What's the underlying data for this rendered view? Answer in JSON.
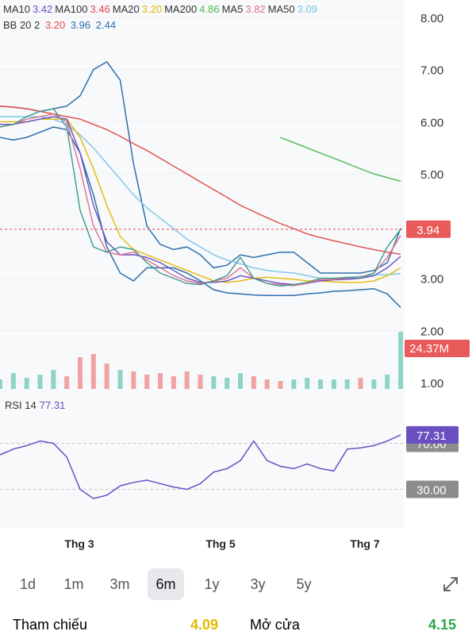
{
  "indicators": {
    "ma_row": [
      {
        "label": "MA10",
        "value": "3.42",
        "color": "#6a4fc2"
      },
      {
        "label": "MA100",
        "value": "3.46",
        "color": "#e24a4a"
      },
      {
        "label": "MA20",
        "value": "3.20",
        "color": "#e6b800"
      },
      {
        "label": "MA200",
        "value": "4.86",
        "color": "#4cb94c"
      },
      {
        "label": "MA5",
        "value": "3.82",
        "color": "#e07090"
      },
      {
        "label": "MA50",
        "value": "3.09",
        "color": "#7cc3ea"
      }
    ],
    "bb_row": {
      "label": "BB 20 2",
      "mid": "3.20",
      "upper": "3.96",
      "lower": "2.44"
    },
    "rsi": {
      "label": "RSI 14",
      "value": "77.31"
    }
  },
  "chart_data": {
    "type": "line",
    "price_axis": {
      "ticks": [
        "8.00",
        "7.00",
        "6.00",
        "5.00",
        "4.00",
        "3.00",
        "2.00",
        "1.00"
      ],
      "range": [
        1,
        8.5
      ]
    },
    "current_price_label": "3.94",
    "current_price": 3.94,
    "volume_label": "24.37M",
    "rsi_axis": {
      "ticks": [
        "70.00",
        "30.00"
      ]
    },
    "x_labels": [
      "Thg 3",
      "Thg 5",
      "Thg 7"
    ],
    "series": [
      {
        "name": "BB upper",
        "color": "#2f6fa8",
        "values": [
          6.3,
          6.28,
          6.25,
          6.2,
          6.25,
          6.3,
          6.5,
          7.0,
          7.15,
          6.8,
          5.2,
          4.0,
          3.65,
          3.55,
          3.6,
          3.45,
          3.2,
          3.25,
          3.45,
          3.4,
          3.45,
          3.5,
          3.5,
          3.3,
          3.1,
          3.1,
          3.1,
          3.1,
          3.15,
          3.3,
          3.96
        ]
      },
      {
        "name": "BB lower",
        "color": "#2f6fa8",
        "values": [
          5.7,
          5.65,
          5.7,
          5.8,
          5.9,
          5.85,
          5.4,
          4.6,
          3.6,
          3.1,
          2.95,
          3.2,
          3.2,
          3.2,
          3.1,
          2.95,
          2.78,
          2.72,
          2.7,
          2.68,
          2.67,
          2.67,
          2.67,
          2.7,
          2.72,
          2.75,
          2.76,
          2.78,
          2.8,
          2.7,
          2.44
        ]
      },
      {
        "name": "MA50",
        "color": "#7cc3ea",
        "values": [
          6.1,
          6.1,
          6.1,
          6.1,
          6.05,
          5.95,
          5.75,
          5.5,
          5.2,
          4.9,
          4.6,
          4.35,
          4.15,
          3.95,
          3.75,
          3.6,
          3.45,
          3.35,
          3.28,
          3.2,
          3.15,
          3.12,
          3.1,
          3.05,
          3.0,
          3.0,
          3.02,
          3.04,
          3.06,
          3.07,
          3.09
        ]
      },
      {
        "name": "MA100",
        "color": "#e24a4a",
        "values": [
          6.3,
          6.28,
          6.25,
          6.2,
          6.15,
          6.1,
          6.05,
          5.95,
          5.85,
          5.72,
          5.58,
          5.45,
          5.3,
          5.15,
          5.0,
          4.85,
          4.7,
          4.55,
          4.4,
          4.28,
          4.16,
          4.05,
          3.95,
          3.85,
          3.78,
          3.72,
          3.66,
          3.6,
          3.55,
          3.5,
          3.46
        ]
      },
      {
        "name": "MA200",
        "color": "#4cb94c",
        "values": [
          null,
          null,
          null,
          null,
          null,
          null,
          null,
          null,
          null,
          null,
          null,
          null,
          null,
          null,
          null,
          null,
          null,
          null,
          null,
          null,
          null,
          5.7,
          5.6,
          5.5,
          5.4,
          5.3,
          5.2,
          5.1,
          5.0,
          4.93,
          4.86
        ]
      },
      {
        "name": "MA20",
        "color": "#e6b800",
        "values": [
          6.0,
          6.0,
          6.0,
          6.05,
          6.05,
          6.05,
          5.7,
          5.1,
          4.4,
          3.8,
          3.55,
          3.45,
          3.35,
          3.25,
          3.15,
          3.05,
          2.95,
          2.92,
          2.95,
          3.0,
          3.02,
          3.0,
          2.98,
          2.95,
          2.95,
          2.93,
          2.92,
          2.92,
          2.95,
          3.05,
          3.2
        ]
      },
      {
        "name": "MA10",
        "color": "#6a4fc2",
        "values": [
          5.95,
          5.95,
          6.0,
          6.05,
          6.1,
          6.05,
          5.4,
          4.4,
          3.7,
          3.45,
          3.45,
          3.4,
          3.3,
          3.15,
          3.0,
          2.92,
          2.92,
          2.95,
          3.05,
          3.0,
          2.95,
          2.9,
          2.88,
          2.9,
          2.95,
          2.97,
          2.98,
          3.0,
          3.05,
          3.2,
          3.42
        ]
      },
      {
        "name": "MA5",
        "color": "#e07090",
        "values": [
          5.9,
          5.95,
          6.05,
          6.1,
          6.15,
          6.0,
          5.1,
          4.0,
          3.5,
          3.45,
          3.5,
          3.35,
          3.2,
          3.05,
          2.95,
          2.9,
          2.95,
          3.0,
          3.2,
          3.0,
          2.9,
          2.88,
          2.86,
          2.9,
          2.97,
          2.98,
          3.0,
          3.02,
          3.1,
          3.4,
          3.82
        ]
      },
      {
        "name": "Close",
        "color": "#3a9a8a",
        "values": [
          5.9,
          5.95,
          6.1,
          6.2,
          6.25,
          5.9,
          4.3,
          3.6,
          3.5,
          3.6,
          3.55,
          3.3,
          3.1,
          3.0,
          2.9,
          2.88,
          2.95,
          3.05,
          3.4,
          3.0,
          2.9,
          2.85,
          2.88,
          2.92,
          3.0,
          3.0,
          3.02,
          3.0,
          3.1,
          3.6,
          3.94
        ]
      }
    ],
    "volumes": [
      0.3,
      0.5,
      0.35,
      0.45,
      0.6,
      0.4,
      1.0,
      1.1,
      0.8,
      0.6,
      0.55,
      0.45,
      0.5,
      0.4,
      0.55,
      0.45,
      0.4,
      0.35,
      0.5,
      0.4,
      0.3,
      0.25,
      0.3,
      0.35,
      0.3,
      0.3,
      0.3,
      0.35,
      0.3,
      0.45,
      1.8
    ],
    "rsi_values": [
      60,
      65,
      68,
      72,
      70,
      58,
      30,
      22,
      25,
      33,
      36,
      38,
      35,
      32,
      30,
      35,
      45,
      48,
      55,
      72,
      55,
      50,
      48,
      52,
      48,
      46,
      65,
      66,
      68,
      72,
      77.31
    ]
  },
  "range_tabs": [
    "1d",
    "1m",
    "3m",
    "6m",
    "1y",
    "3y",
    "5y"
  ],
  "active_tab": "6m",
  "footer": {
    "ref_label": "Tham chiếu",
    "ref_value": "4.09",
    "open_label": "Mở cửa",
    "open_value": "4.15"
  },
  "colors": {
    "ref": "#e6b800",
    "open": "#2aa849",
    "price_box": "#e95a5a",
    "rsi_box": "#6a4fc2",
    "gray_box": "#8c8c8c"
  }
}
